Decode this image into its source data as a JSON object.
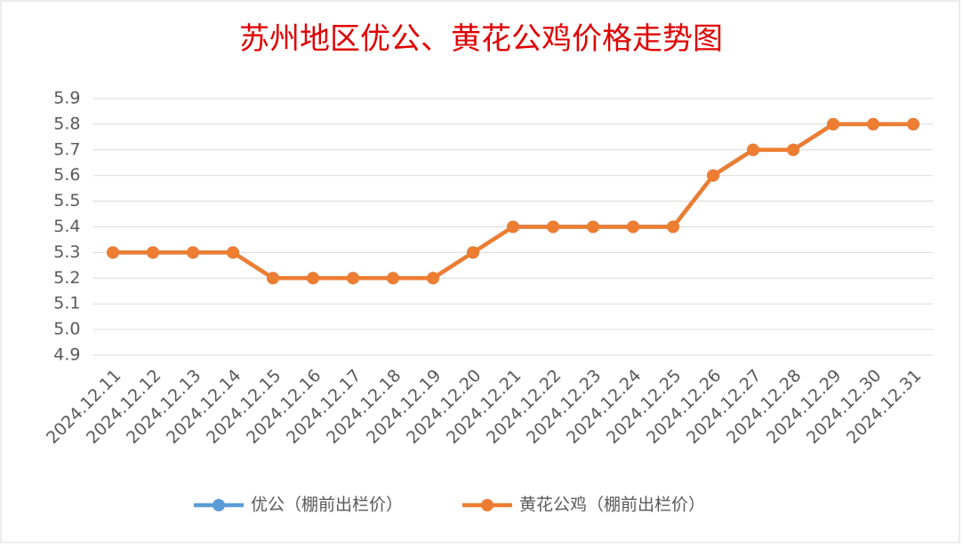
{
  "chart_data": {
    "type": "line",
    "title": "苏州地区优公、黄花公鸡价格走势图",
    "categories": [
      "2024.12.11",
      "2024.12.12",
      "2024.12.13",
      "2024.12.14",
      "2024.12.15",
      "2024.12.16",
      "2024.12.17",
      "2024.12.18",
      "2024.12.19",
      "2024.12.20",
      "2024.12.21",
      "2024.12.22",
      "2024.12.23",
      "2024.12.24",
      "2024.12.25",
      "2024.12.26",
      "2024.12.27",
      "2024.12.28",
      "2024.12.29",
      "2024.12.30",
      "2024.12.31"
    ],
    "series": [
      {
        "name": "优公（棚前出栏价）",
        "color": "#5b9bd5",
        "values": [
          5.3,
          5.3,
          5.3,
          5.3,
          5.2,
          5.2,
          5.2,
          5.2,
          5.2,
          5.3,
          5.4,
          5.4,
          5.4,
          5.4,
          5.4,
          5.6,
          5.7,
          5.7,
          5.8,
          5.8,
          5.8
        ]
      },
      {
        "name": "黄花公鸡（棚前出栏价）",
        "color": "#ed7d31",
        "values": [
          5.3,
          5.3,
          5.3,
          5.3,
          5.2,
          5.2,
          5.2,
          5.2,
          5.2,
          5.3,
          5.4,
          5.4,
          5.4,
          5.4,
          5.4,
          5.6,
          5.7,
          5.7,
          5.8,
          5.8,
          5.8
        ]
      }
    ],
    "ylim": [
      4.9,
      5.9
    ],
    "yticks": [
      4.9,
      {
        "value": 5,
        "label": "5.0"
      },
      5.1,
      5.2,
      5.3,
      5.4,
      5.5,
      5.6,
      5.7,
      5.8,
      5.9
    ],
    "grid": true,
    "legend": "bottom"
  }
}
